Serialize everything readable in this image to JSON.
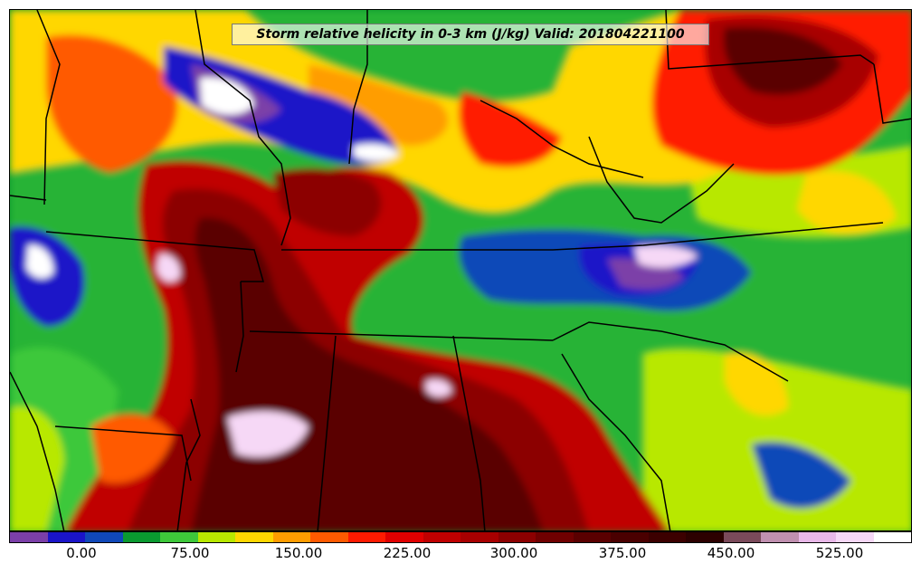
{
  "title": "Storm relative helicity in 0-3 km (J/kg) Valid: 201804221100",
  "colorbar": {
    "colors": [
      "#7b3fa8",
      "#1a14c8",
      "#1048b8",
      "#0a9a30",
      "#3ec83a",
      "#b8e800",
      "#ffd700",
      "#ff9d00",
      "#ff5a00",
      "#ff1a00",
      "#e00000",
      "#c00000",
      "#a80000",
      "#8c0000",
      "#700000",
      "#5a0000",
      "#4a0000",
      "#3c0000",
      "#2c0000",
      "#7a4a5a",
      "#c090b0",
      "#e8b8e8",
      "#f6d8f6",
      "#ffffff"
    ],
    "tick_labels": [
      "0.00",
      "75.00",
      "150.00",
      "225.00",
      "300.00",
      "375.00",
      "450.00",
      "525.00"
    ]
  }
}
